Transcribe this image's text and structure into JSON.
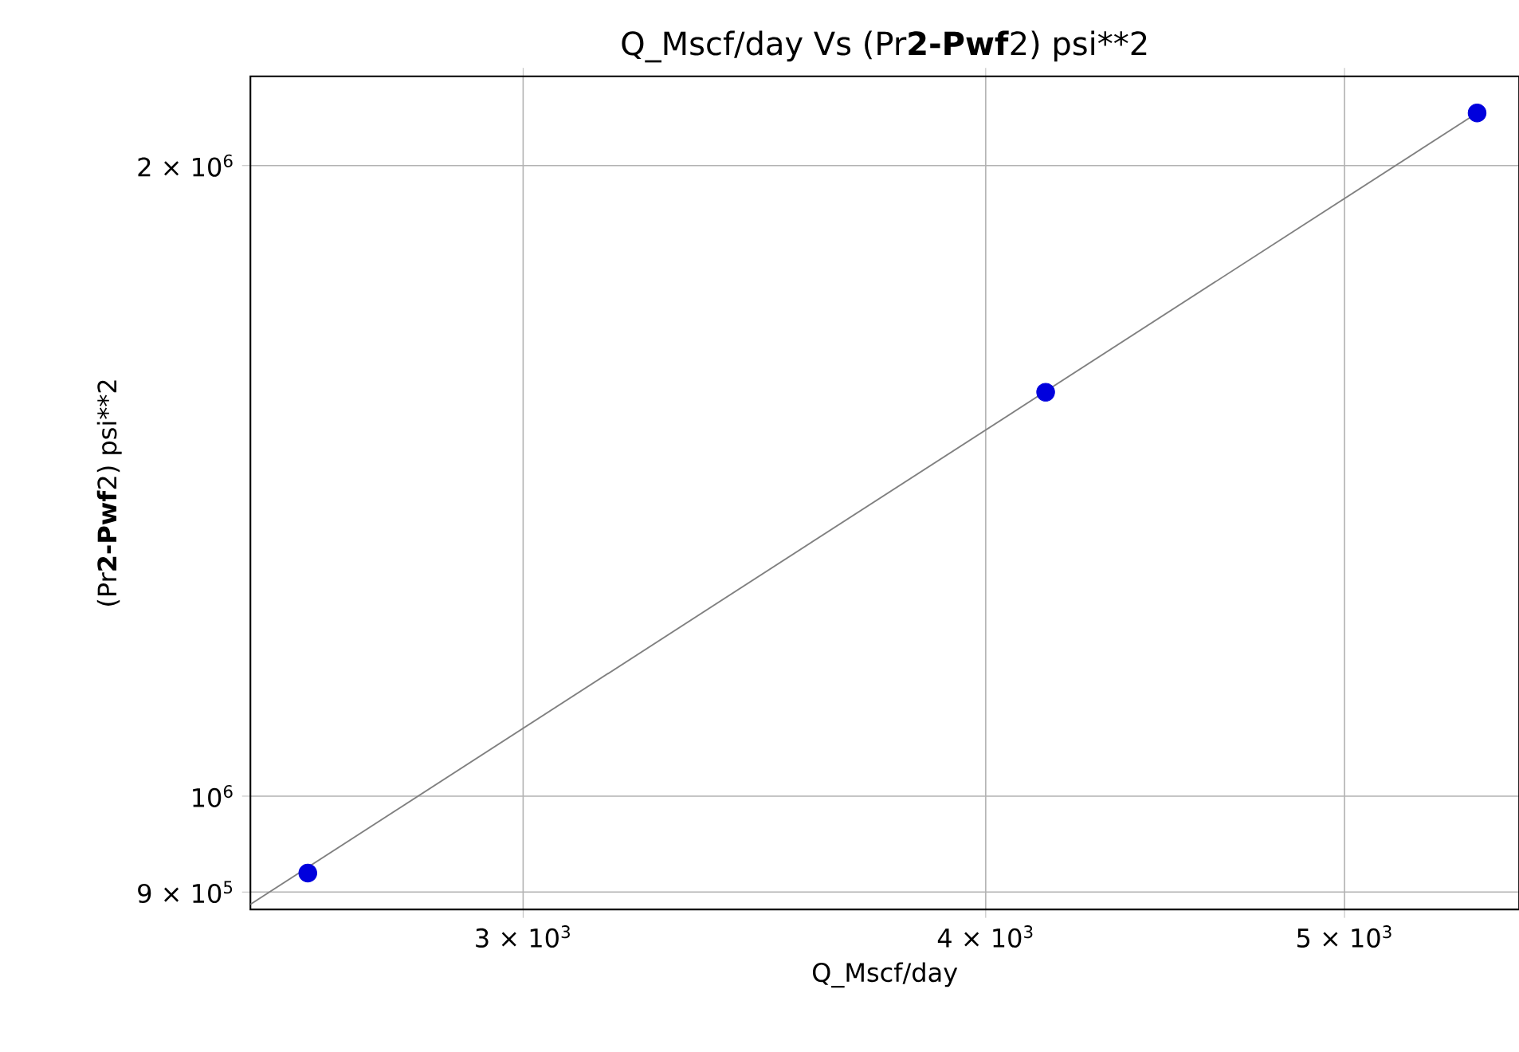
{
  "chart_data": {
    "type": "scatter",
    "title": "Q_Mscf/day Vs (Pr**2-Pwf**2) psi**2",
    "xlabel": "Q_Mscf/day",
    "ylabel": "(Pr**2-Pwf**2) psi**2",
    "log": "xy",
    "grid": true,
    "xlim": [
      2532,
      5574
    ],
    "ylim": [
      883000,
      2206000
    ],
    "xticks": [
      {
        "value": 3000,
        "label": "3 × 10$^{3}$"
      },
      {
        "value": 4000,
        "label": "4 × 10$^{3}$"
      },
      {
        "value": 5000,
        "label": "5 × 10$^{3}$"
      }
    ],
    "yticks": [
      {
        "value": 900000,
        "label": "9 × 10$^{5}$"
      },
      {
        "value": 1000000,
        "label": "10$^{6}$"
      },
      {
        "value": 2000000,
        "label": "2 × 10$^{6}$"
      }
    ],
    "series": [
      {
        "type": "line",
        "marker": "none",
        "color": "#808080",
        "x": [
          2532,
          5430
        ],
        "values": [
          888000,
          2119000
        ]
      },
      {
        "marker": "circle",
        "color": "#0000dd",
        "x": [
          2624,
          4152,
          5430
        ],
        "values": [
          919000,
          1559000,
          2119000
        ]
      }
    ]
  }
}
